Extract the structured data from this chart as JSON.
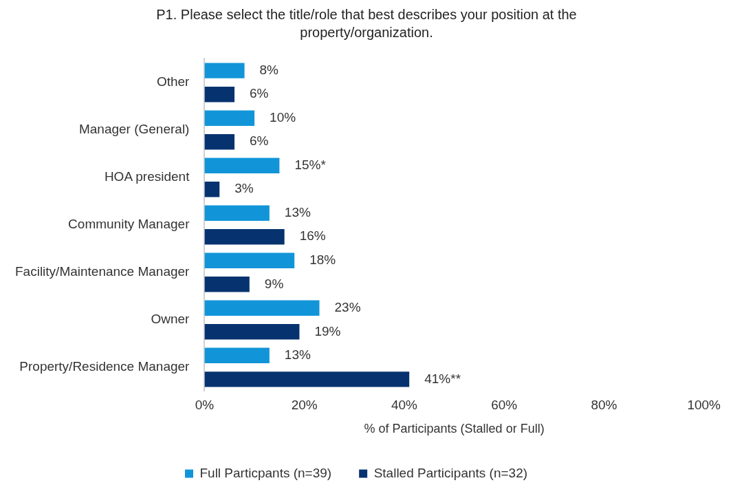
{
  "chart_data": {
    "type": "bar",
    "orientation": "horizontal",
    "title": "P1. Please select the title/role that best describes your position at the property/organization.",
    "xlabel": "% of Participants (Stalled or Full)",
    "categories": [
      "Other",
      "Manager (General)",
      "HOA president",
      "Community Manager",
      "Facility/Maintenance Manager",
      "Owner",
      "Property/Residence Manager"
    ],
    "series": [
      {
        "name": "Full Particpants (n=39)",
        "color": "#1195d8",
        "values": [
          8,
          10,
          15,
          13,
          18,
          23,
          13
        ],
        "value_labels": [
          "8%",
          "10%",
          "15%*",
          "13%",
          "18%",
          "23%",
          "13%"
        ]
      },
      {
        "name": "Stalled Participants (n=32)",
        "color": "#06336f",
        "values": [
          6,
          6,
          3,
          16,
          9,
          19,
          41
        ],
        "value_labels": [
          "6%",
          "6%",
          "3%",
          "16%",
          "9%",
          "19%",
          "41%**"
        ]
      }
    ],
    "xlim": [
      0,
      100
    ],
    "xticks": [
      {
        "value": 0,
        "label": "0%"
      },
      {
        "value": 20,
        "label": "20%"
      },
      {
        "value": 40,
        "label": "40%"
      },
      {
        "value": 60,
        "label": "60%"
      },
      {
        "value": 80,
        "label": "80%"
      },
      {
        "value": 100,
        "label": "100%"
      }
    ],
    "grid": false,
    "legend": "bottom"
  }
}
